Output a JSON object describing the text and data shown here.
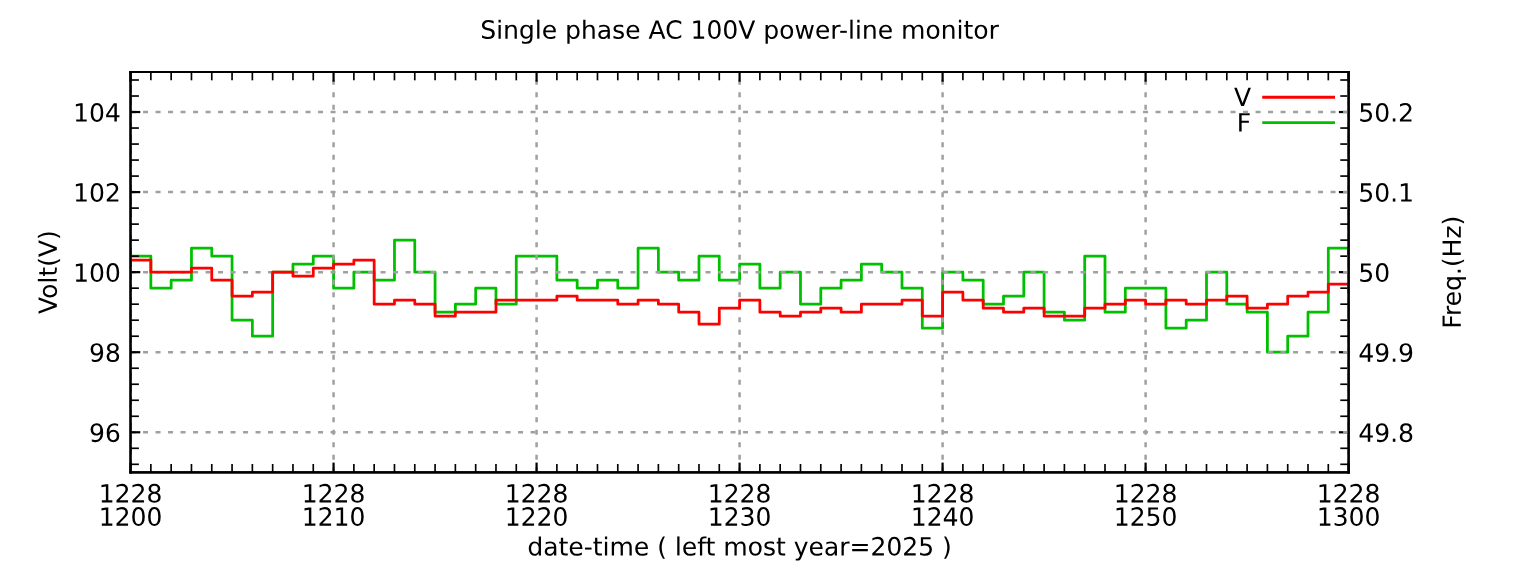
{
  "chart_data": {
    "type": "step",
    "title": "Single phase AC 100V power-line monitor",
    "xlabel": "date-time ( left most year=2025 )",
    "ylabel": "Volt(V)",
    "y2label": "Freq.(Hz)",
    "x": [
      "2025-12-28T12:00",
      "2025-12-28T12:01",
      "2025-12-28T12:02",
      "2025-12-28T12:03",
      "2025-12-28T12:04",
      "2025-12-28T12:05",
      "2025-12-28T12:06",
      "2025-12-28T12:07",
      "2025-12-28T12:08",
      "2025-12-28T12:09",
      "2025-12-28T12:10",
      "2025-12-28T12:11",
      "2025-12-28T12:12",
      "2025-12-28T12:13",
      "2025-12-28T12:14",
      "2025-12-28T12:15",
      "2025-12-28T12:16",
      "2025-12-28T12:17",
      "2025-12-28T12:18",
      "2025-12-28T12:19",
      "2025-12-28T12:20",
      "2025-12-28T12:21",
      "2025-12-28T12:22",
      "2025-12-28T12:23",
      "2025-12-28T12:24",
      "2025-12-28T12:25",
      "2025-12-28T12:26",
      "2025-12-28T12:27",
      "2025-12-28T12:28",
      "2025-12-28T12:29",
      "2025-12-28T12:30",
      "2025-12-28T12:31",
      "2025-12-28T12:32",
      "2025-12-28T12:33",
      "2025-12-28T12:34",
      "2025-12-28T12:35",
      "2025-12-28T12:36",
      "2025-12-28T12:37",
      "2025-12-28T12:38",
      "2025-12-28T12:39",
      "2025-12-28T12:40",
      "2025-12-28T12:41",
      "2025-12-28T12:42",
      "2025-12-28T12:43",
      "2025-12-28T12:44",
      "2025-12-28T12:45",
      "2025-12-28T12:46",
      "2025-12-28T12:47",
      "2025-12-28T12:48",
      "2025-12-28T12:49",
      "2025-12-28T12:50",
      "2025-12-28T12:51",
      "2025-12-28T12:52",
      "2025-12-28T12:53",
      "2025-12-28T12:54",
      "2025-12-28T12:55",
      "2025-12-28T12:56",
      "2025-12-28T12:57",
      "2025-12-28T12:58",
      "2025-12-28T12:59",
      "2025-12-28T13:00"
    ],
    "series": [
      {
        "name": "V",
        "color": "#ff0000",
        "values": [
          100.3,
          100.0,
          100.0,
          100.1,
          99.8,
          99.4,
          99.5,
          100.0,
          99.9,
          100.1,
          100.2,
          100.3,
          99.2,
          99.3,
          99.2,
          98.9,
          99.0,
          99.0,
          99.3,
          99.3,
          99.3,
          99.4,
          99.3,
          99.3,
          99.2,
          99.3,
          99.2,
          99.0,
          98.7,
          99.1,
          99.3,
          99.0,
          98.9,
          99.0,
          99.1,
          99.0,
          99.2,
          99.2,
          99.3,
          98.9,
          99.5,
          99.3,
          99.1,
          99.0,
          99.1,
          98.9,
          98.9,
          99.1,
          99.2,
          99.3,
          99.2,
          99.3,
          99.2,
          99.3,
          99.4,
          99.1,
          99.2,
          99.4,
          99.5,
          99.7,
          99.5
        ]
      },
      {
        "name": "F",
        "color": "#00c000",
        "axis": "y2",
        "values": [
          50.02,
          49.98,
          49.99,
          50.03,
          50.02,
          49.94,
          49.92,
          50.0,
          50.01,
          50.02,
          49.98,
          50.0,
          49.99,
          50.04,
          50.0,
          49.95,
          49.96,
          49.98,
          49.96,
          50.02,
          50.02,
          49.99,
          49.98,
          49.99,
          49.98,
          50.03,
          50.0,
          49.99,
          50.02,
          49.99,
          50.01,
          49.98,
          50.0,
          49.96,
          49.98,
          49.99,
          50.01,
          50.0,
          49.98,
          49.93,
          50.0,
          49.99,
          49.96,
          49.97,
          50.0,
          49.95,
          49.94,
          50.02,
          49.95,
          49.98,
          49.98,
          49.93,
          49.94,
          50.0,
          49.96,
          49.95,
          49.9,
          49.92,
          49.95,
          50.03,
          50.02
        ]
      }
    ],
    "xlim": [
      "2025-12-28T12:00",
      "2025-12-28T13:00"
    ],
    "xticks": [
      {
        "value": "2025-12-28T12:00",
        "label": "1228\n1200"
      },
      {
        "value": "2025-12-28T12:10",
        "label": "1228\n1210"
      },
      {
        "value": "2025-12-28T12:20",
        "label": "1228\n1220"
      },
      {
        "value": "2025-12-28T12:30",
        "label": "1228\n1230"
      },
      {
        "value": "2025-12-28T12:40",
        "label": "1228\n1240"
      },
      {
        "value": "2025-12-28T12:50",
        "label": "1228\n1250"
      },
      {
        "value": "2025-12-28T13:00",
        "label": "1228\n1300"
      }
    ],
    "ylim": [
      95,
      105
    ],
    "yticks": [
      96,
      98,
      100,
      102,
      104
    ],
    "y2lim": [
      49.75,
      50.25
    ],
    "y2ticks": [
      49.8,
      49.9,
      50,
      50.1,
      50.2
    ],
    "grid": true,
    "legend": "top right",
    "line_style": "solid"
  }
}
